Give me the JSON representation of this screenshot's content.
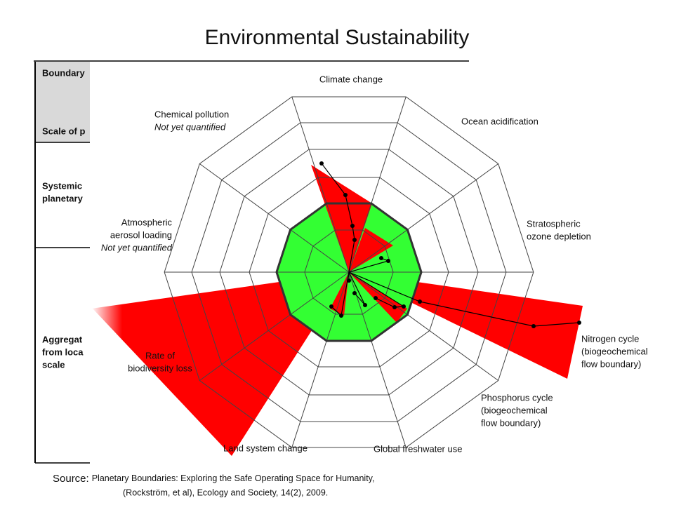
{
  "title": "Environmental Sustainability",
  "table": {
    "header": [
      "Boundary",
      "Scale of p"
    ],
    "rows": [
      [
        "Systemic",
        "planetary"
      ],
      [
        "Aggregat",
        "from loca",
        "scale"
      ]
    ]
  },
  "diagram": {
    "labels": {
      "climate": [
        "Climate change"
      ],
      "ocean": [
        "Ocean acidification"
      ],
      "ozone": [
        "Stratospheric",
        "ozone depletion"
      ],
      "nitrogen": [
        "Nitrogen cycle",
        "(biogeochemical",
        "flow boundary)"
      ],
      "phosphorus": [
        "Phosphorus cycle",
        "(biogeochemical",
        "flow boundary)"
      ],
      "freshwater": [
        "Global freshwater use"
      ],
      "land": [
        "Land system change"
      ],
      "biodiversity": [
        "Rate of",
        "biodiversity loss"
      ],
      "aerosol": [
        "Atmospheric",
        "aerosol loading",
        "Not yet quantified"
      ],
      "chemical": [
        "Chemical pollution",
        "Not yet quantified"
      ]
    }
  },
  "source": {
    "prefix": "Source:",
    "lines": [
      "Planetary Boundaries: Exploring the Safe Operating Space for Humanity,",
      "(Rockström, et al), Ecology and Society, 14(2), 2009."
    ]
  }
}
